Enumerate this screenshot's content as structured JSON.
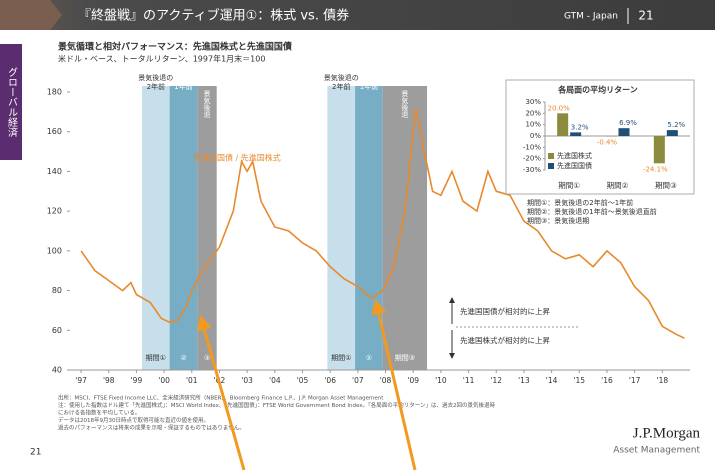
{
  "header": {
    "title": "『終盤戦』のアクティブ運用①：株式 vs. 債券",
    "code": "GTM - Japan",
    "page": "21"
  },
  "sidebar": "グローバル経済",
  "chart_data": [
    {
      "type": "line",
      "title": "景気循環と相対パフォーマンス：先進国株式と先進国国債",
      "subtitle": "米ドル・ベース、トータルリターン、1997年1月末＝100",
      "x": [
        1997.0,
        1997.5,
        1998.0,
        1998.5,
        1998.8,
        1999.0,
        1999.5,
        1999.9,
        2000.2,
        2000.5,
        2000.8,
        2001.0,
        2001.3,
        2001.7,
        2002.0,
        2002.5,
        2002.8,
        2003.0,
        2003.2,
        2003.5,
        2004.0,
        2004.5,
        2005.0,
        2005.5,
        2006.0,
        2006.5,
        2007.0,
        2007.5,
        2007.9,
        2008.3,
        2008.7,
        2009.0,
        2009.1,
        2009.4,
        2009.7,
        2010.0,
        2010.4,
        2010.8,
        2011.3,
        2011.7,
        2012.0,
        2012.5,
        2013.0,
        2013.5,
        2014.0,
        2014.5,
        2015.0,
        2015.5,
        2016.0,
        2016.5,
        2017.0,
        2017.5,
        2018.0,
        2018.5,
        2018.8
      ],
      "series": [
        {
          "name": "先進国国債 / 先進国株式",
          "color": "#e8892c",
          "values": [
            100,
            90,
            85,
            80,
            84,
            78,
            74,
            66,
            64,
            65,
            72,
            80,
            88,
            96,
            102,
            120,
            145,
            140,
            145,
            125,
            112,
            110,
            104,
            100,
            92,
            86,
            82,
            76,
            80,
            92,
            120,
            160,
            172,
            150,
            130,
            128,
            140,
            125,
            120,
            140,
            130,
            128,
            115,
            110,
            100,
            96,
            98,
            92,
            100,
            94,
            82,
            75,
            62,
            58,
            56
          ]
        }
      ],
      "xlim": [
        1996.6,
        2019.0
      ],
      "xticks": [
        {
          "value": 1997,
          "label": "'97"
        },
        {
          "value": 1998,
          "label": "'98"
        },
        {
          "value": 1999,
          "label": "'99"
        },
        {
          "value": 2000,
          "label": "'00"
        },
        {
          "value": 2001,
          "label": "'01"
        },
        {
          "value": 2002,
          "label": "'02"
        },
        {
          "value": 2003,
          "label": "'03"
        },
        {
          "value": 2004,
          "label": "'04"
        },
        {
          "value": 2005,
          "label": "'05"
        },
        {
          "value": 2006,
          "label": "'06"
        },
        {
          "value": 2007,
          "label": "'07"
        },
        {
          "value": 2008,
          "label": "'08"
        },
        {
          "value": 2009,
          "label": "'09"
        },
        {
          "value": 2010,
          "label": "'10"
        },
        {
          "value": 2011,
          "label": "'11"
        },
        {
          "value": 2012,
          "label": "'12"
        },
        {
          "value": 2013,
          "label": "'13"
        },
        {
          "value": 2014,
          "label": "'14"
        },
        {
          "value": 2015,
          "label": "'15"
        },
        {
          "value": 2016,
          "label": "'16"
        },
        {
          "value": 2017,
          "label": "'17"
        },
        {
          "value": 2018,
          "label": "'18"
        }
      ],
      "ylim": [
        40,
        180
      ],
      "yticks": [
        40,
        60,
        80,
        100,
        120,
        140,
        160,
        180
      ],
      "periods": [
        {
          "start": 1999.2,
          "end": 2000.2,
          "color": "#bcd9e6",
          "top_label": [
            "景気後退の",
            "2年前"
          ],
          "bottom_label": "期間①"
        },
        {
          "start": 2000.2,
          "end": 2001.2,
          "color": "#5f9fbb",
          "top_label": [
            "1年前"
          ],
          "bottom_label": "②"
        },
        {
          "start": 2001.2,
          "end": 2001.9,
          "color": "#8c8c8c",
          "top_label": [
            "景気後退"
          ],
          "bottom_label": "③"
        },
        {
          "start": 2005.9,
          "end": 2006.9,
          "color": "#bcd9e6",
          "top_label": [
            "景気後退の",
            "2年前"
          ],
          "bottom_label": "期間①"
        },
        {
          "start": 2006.9,
          "end": 2007.9,
          "color": "#5f9fbb",
          "top_label": [
            "1年前"
          ],
          "bottom_label": "②"
        },
        {
          "start": 2007.9,
          "end": 2009.5,
          "color": "#8c8c8c",
          "top_label": [
            "景気後退"
          ],
          "bottom_label": "期間③"
        }
      ],
      "annotation": {
        "up": "先進国国債が相対的に上昇",
        "down": "先進国株式が相対的に上昇"
      }
    },
    {
      "type": "bar",
      "title": "各局面の平均リターン",
      "categories": [
        "期間①",
        "期間②",
        "期間③"
      ],
      "series": [
        {
          "name": "先進国株式",
          "color": "#8c8a3c",
          "values": [
            20.0,
            -0.4,
            -24.1
          ],
          "value_labels": [
            "20.0%",
            "-0.4%",
            "-24.1%"
          ]
        },
        {
          "name": "先進国国債",
          "color": "#1f4e79",
          "values": [
            3.2,
            6.9,
            5.2
          ],
          "value_labels": [
            "3.2%",
            "6.9%",
            "5.2%"
          ]
        }
      ],
      "ylim": [
        -30,
        30
      ],
      "yticks": [
        {
          "value": 30,
          "label": "30%"
        },
        {
          "value": 20,
          "label": "20%"
        },
        {
          "value": 10,
          "label": "10%"
        },
        {
          "value": 0,
          "label": "0%"
        },
        {
          "value": -10,
          "label": "-10%"
        },
        {
          "value": -20,
          "label": "-20%"
        },
        {
          "value": -30,
          "label": "-30%"
        }
      ],
      "notes": [
        "期間①：景気後退の2年前～1年前",
        "期間②：景気後退の1年前～景気後退直前",
        "期間③：景気後退期"
      ]
    }
  ],
  "footnotes": [
    "出所：MSCI、FTSE Fixed Income LLC、全米経済研究所（NBER）、Bloomberg Finance L.P.、J.P. Morgan Asset Management",
    "注：使用した指数はドル建て「先進国株式」：MSCI World Index、「先進国国債」：FTSE World Government Bond Index。「各局面の平均リターン」は、過去2回の景気後退時",
    "における各指数を平均している。",
    "データは2018年9月30日時点で取得可能な直近の値を使用。",
    "過去のパフォーマンスは将来の成果を示唆・保証するものではありません。"
  ],
  "page_number": "21",
  "logo": {
    "name": "J.P.Morgan",
    "sub": "Asset Management"
  }
}
